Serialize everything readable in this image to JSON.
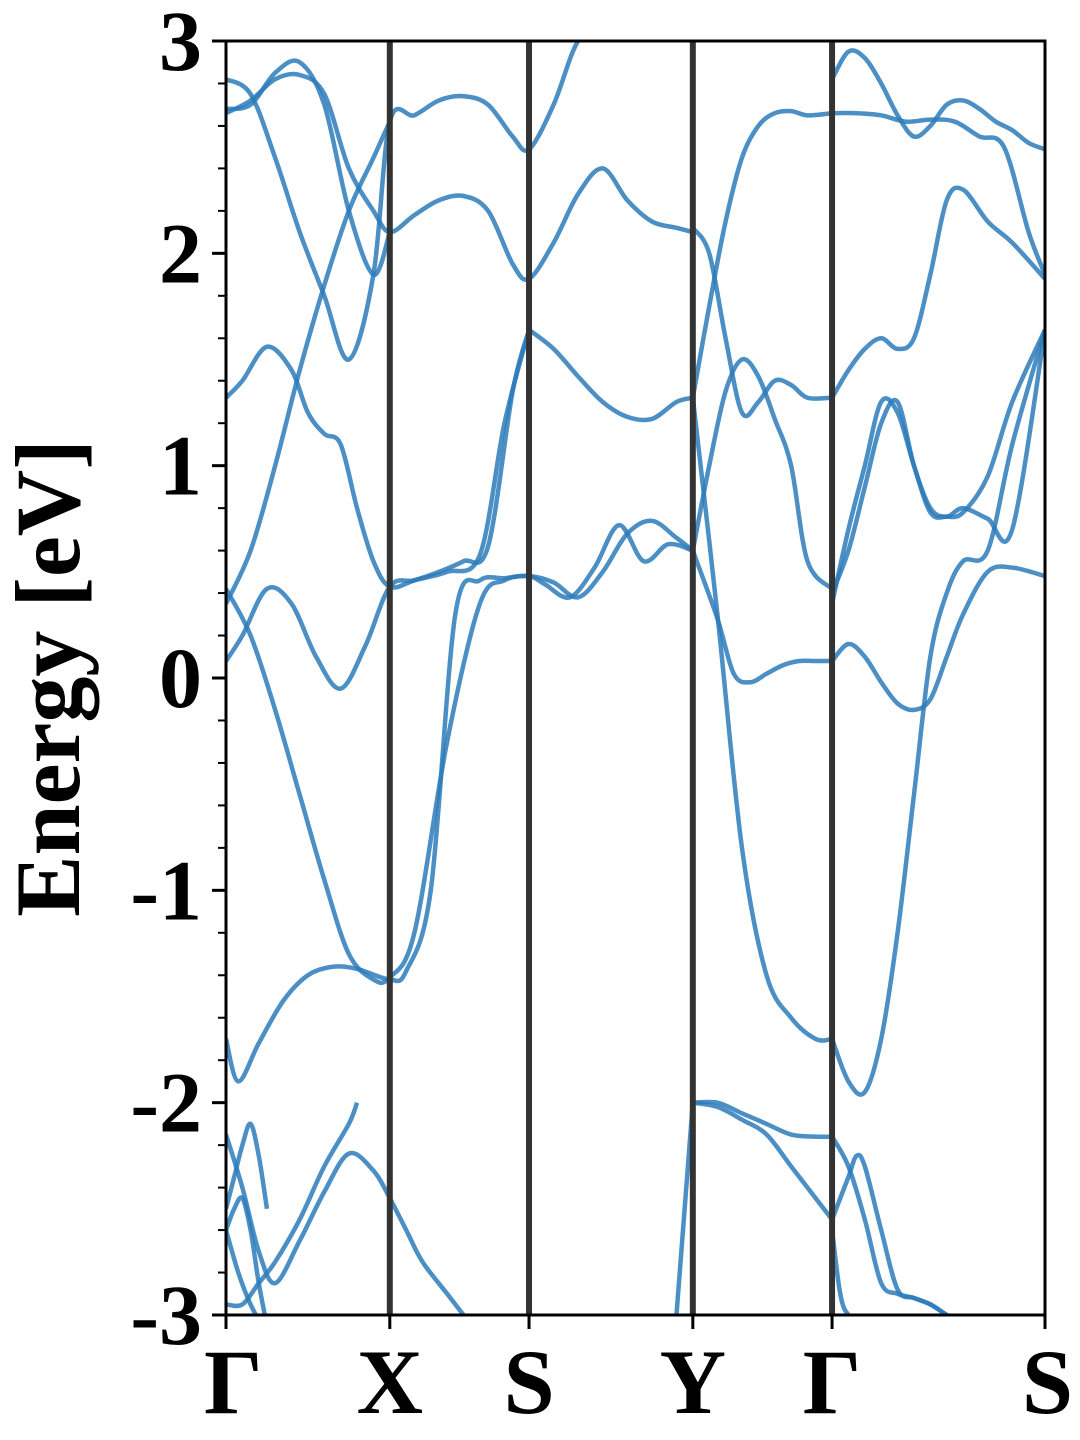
{
  "chart_data": {
    "type": "line",
    "title": "",
    "xlabel": "",
    "ylabel": "Energy [eV]",
    "ylim": [
      -3,
      3
    ],
    "y_major_ticks": [
      -3,
      -2,
      -1,
      0,
      1,
      2,
      3
    ],
    "y_tick_labels": [
      "-3",
      "-2",
      "-1",
      "0",
      "1",
      "2",
      "3"
    ],
    "y_minor_step": 0.2,
    "grid": false,
    "legend": "none",
    "line_color": "#2b7bba",
    "divider_color": "#333333",
    "k_points": [
      "Γ",
      "X",
      "S",
      "Y",
      "Γ",
      "S"
    ],
    "k_positions": [
      0,
      0.2,
      0.37,
      0.57,
      0.74,
      1.0
    ],
    "x_range": [
      0,
      1.0
    ],
    "bands": [
      {
        "x": [
          0,
          0.015,
          0.04,
          0.07,
          0.1,
          0.13,
          0.16,
          0.2,
          0.22,
          0.25,
          0.28,
          0.31,
          0.34,
          0.37,
          0.39,
          0.42,
          0.45,
          0.48,
          0.51,
          0.54,
          0.57
        ],
        "y": [
          -1.7,
          -1.9,
          -1.72,
          -1.52,
          -1.4,
          -1.36,
          -1.37,
          -1.42,
          -1.38,
          -1.0,
          0.3,
          0.46,
          0.47,
          0.48,
          0.44,
          0.38,
          0.52,
          0.72,
          0.55,
          0.63,
          0.6
        ]
      },
      {
        "x": [
          0,
          0.03,
          0.06,
          0.09,
          0.12,
          0.15,
          0.18,
          0.2,
          0.23,
          0.27,
          0.31,
          0.34,
          0.37,
          0.4,
          0.43,
          0.46,
          0.49,
          0.52,
          0.55,
          0.57
        ],
        "y": [
          0.42,
          0.2,
          -0.15,
          -0.55,
          -0.95,
          -1.3,
          -1.42,
          -1.41,
          -1.2,
          -0.3,
          0.35,
          0.46,
          0.48,
          0.45,
          0.38,
          0.5,
          0.68,
          0.74,
          0.66,
          0.6
        ]
      },
      {
        "x": [
          0,
          0.02,
          0.05,
          0.08,
          0.11,
          0.14,
          0.17,
          0.2,
          0.23,
          0.27,
          0.31,
          0.34,
          0.37
        ],
        "y": [
          0.08,
          0.2,
          0.42,
          0.35,
          0.1,
          -0.05,
          0.15,
          0.43,
          0.46,
          0.5,
          0.58,
          1.2,
          1.64
        ]
      },
      {
        "x": [
          0,
          0.03,
          0.06,
          0.09,
          0.12,
          0.15,
          0.18,
          0.2
        ],
        "y": [
          0.35,
          0.6,
          1.0,
          1.45,
          1.85,
          2.2,
          2.45,
          2.62
        ]
      },
      {
        "x": [
          0,
          0.02,
          0.05,
          0.08,
          0.1,
          0.12,
          0.14,
          0.16,
          0.18,
          0.2,
          0.23,
          0.26,
          0.29,
          0.32,
          0.35,
          0.37
        ],
        "y": [
          1.32,
          1.4,
          1.56,
          1.45,
          1.25,
          1.15,
          1.1,
          0.8,
          0.55,
          0.43,
          0.46,
          0.5,
          0.55,
          0.62,
          1.35,
          1.64
        ]
      },
      {
        "x": [
          0,
          0.03,
          0.06,
          0.09,
          0.12,
          0.15,
          0.18,
          0.2,
          0.23,
          0.26,
          0.29,
          0.32,
          0.35,
          0.37,
          0.4,
          0.43,
          0.46,
          0.49,
          0.52,
          0.55,
          0.57
        ],
        "y": [
          2.66,
          2.72,
          2.82,
          2.84,
          2.75,
          2.4,
          2.2,
          2.1,
          2.18,
          2.25,
          2.27,
          2.2,
          1.95,
          1.88,
          2.05,
          2.28,
          2.4,
          2.25,
          2.15,
          2.12,
          2.1
        ]
      },
      {
        "x": [
          0,
          0.03,
          0.06,
          0.09,
          0.12,
          0.15,
          0.18,
          0.2,
          0.23,
          0.26,
          0.29,
          0.32,
          0.35,
          0.37,
          0.4,
          0.43,
          0.46,
          0.49,
          0.52,
          0.55,
          0.57
        ],
        "y": [
          2.82,
          2.75,
          2.45,
          2.1,
          1.8,
          1.5,
          1.9,
          2.62,
          2.65,
          2.72,
          2.74,
          2.7,
          2.55,
          2.49,
          2.7,
          3.0,
          3.05,
          3.1,
          3.1,
          3.1,
          3.1
        ]
      },
      {
        "x": [
          0,
          0.03,
          0.06,
          0.09,
          0.12,
          0.15,
          0.18,
          0.2
        ],
        "y": [
          2.68,
          2.7,
          2.85,
          2.9,
          2.7,
          2.2,
          1.9,
          2.1
        ]
      },
      {
        "x": [
          0.37,
          0.4,
          0.43,
          0.46,
          0.49,
          0.52,
          0.55,
          0.57
        ],
        "y": [
          1.64,
          1.55,
          1.42,
          1.3,
          1.23,
          1.22,
          1.3,
          1.32
        ]
      },
      {
        "x": [
          0.57,
          0.59,
          0.61,
          0.63,
          0.65,
          0.67,
          0.69,
          0.71,
          0.74
        ],
        "y": [
          0.6,
          1.0,
          1.35,
          1.5,
          1.42,
          1.22,
          1.0,
          0.55,
          0.42
        ]
      },
      {
        "x": [
          0.57,
          0.59,
          0.61,
          0.63,
          0.65,
          0.67,
          0.69,
          0.71,
          0.74
        ],
        "y": [
          1.32,
          1.75,
          2.15,
          2.45,
          2.6,
          2.66,
          2.67,
          2.65,
          2.66
        ]
      },
      {
        "x": [
          0.57,
          0.59,
          0.61,
          0.63,
          0.65,
          0.67,
          0.69,
          0.71,
          0.74
        ],
        "y": [
          2.12,
          2.0,
          1.6,
          1.25,
          1.3,
          1.4,
          1.38,
          1.32,
          1.32
        ]
      },
      {
        "x": [
          0.57,
          0.6,
          0.62,
          0.64,
          0.66,
          0.68,
          0.7,
          0.72,
          0.74
        ],
        "y": [
          0.6,
          0.28,
          0.02,
          -0.02,
          0.02,
          0.06,
          0.08,
          0.08,
          0.08
        ]
      },
      {
        "x": [
          0.57,
          0.6,
          0.63,
          0.66,
          0.69,
          0.72,
          0.74
        ],
        "y": [
          1.32,
          0.3,
          -0.8,
          -1.4,
          -1.6,
          -1.7,
          -1.7
        ]
      },
      {
        "x": [
          0.74,
          0.76,
          0.78,
          0.8,
          0.82,
          0.84,
          0.86,
          0.88,
          0.9,
          0.93,
          0.96,
          1.0
        ],
        "y": [
          0.08,
          0.16,
          0.1,
          -0.02,
          -0.12,
          -0.15,
          -0.1,
          0.1,
          0.3,
          0.5,
          0.52,
          0.48
        ]
      },
      {
        "x": [
          0.74,
          0.76,
          0.78,
          0.8,
          0.82,
          0.84,
          0.86,
          0.88,
          0.9,
          0.93,
          0.96,
          1.0
        ],
        "y": [
          -1.7,
          -1.9,
          -1.95,
          -1.7,
          -1.2,
          -0.55,
          0.1,
          0.4,
          0.55,
          0.6,
          1.1,
          1.64
        ]
      },
      {
        "x": [
          0.74,
          0.76,
          0.78,
          0.8,
          0.82,
          0.84,
          0.86,
          0.88,
          0.9,
          0.93,
          0.96,
          1.0
        ],
        "y": [
          0.4,
          0.6,
          0.9,
          1.2,
          1.3,
          1.0,
          0.8,
          0.76,
          0.8,
          0.75,
          0.7,
          1.64
        ]
      },
      {
        "x": [
          0.74,
          0.76,
          0.78,
          0.8,
          0.82,
          0.84,
          0.86,
          0.88,
          0.9,
          0.93,
          0.96,
          1.0
        ],
        "y": [
          0.35,
          0.7,
          1.0,
          1.3,
          1.25,
          1.0,
          0.78,
          0.76,
          0.78,
          0.95,
          1.3,
          1.64
        ]
      },
      {
        "x": [
          0.74,
          0.76,
          0.78,
          0.8,
          0.82,
          0.84,
          0.86,
          0.88,
          0.9,
          0.93,
          0.96,
          1.0
        ],
        "y": [
          1.32,
          1.45,
          1.55,
          1.6,
          1.55,
          1.6,
          1.9,
          2.25,
          2.3,
          2.15,
          2.05,
          1.88
        ]
      },
      {
        "x": [
          0.74,
          0.77,
          0.8,
          0.83,
          0.86,
          0.89,
          0.92,
          0.95,
          0.98,
          1.0
        ],
        "y": [
          2.66,
          2.66,
          2.65,
          2.62,
          2.63,
          2.62,
          2.55,
          2.5,
          2.1,
          1.9
        ]
      },
      {
        "x": [
          0.74,
          0.76,
          0.78,
          0.8,
          0.82,
          0.84,
          0.86,
          0.88,
          0.9,
          0.92,
          0.94,
          0.96,
          0.98,
          1.0
        ],
        "y": [
          2.82,
          2.95,
          2.92,
          2.8,
          2.65,
          2.55,
          2.6,
          2.7,
          2.72,
          2.68,
          2.62,
          2.58,
          2.52,
          2.49
        ]
      },
      {
        "x": [
          0.57,
          0.6,
          0.63,
          0.66,
          0.69,
          0.72,
          0.74
        ],
        "y": [
          -2.0,
          -2.0,
          -2.05,
          -2.1,
          -2.15,
          -2.16,
          -2.16
        ]
      },
      {
        "x": [
          0.57,
          0.6,
          0.63,
          0.66,
          0.69,
          0.72,
          0.74
        ],
        "y": [
          -2.0,
          -2.02,
          -2.08,
          -2.15,
          -2.3,
          -2.45,
          -2.55
        ]
      },
      {
        "x": [
          0.55,
          0.56,
          0.57
        ],
        "y": [
          -3.0,
          -2.5,
          -2.0
        ]
      },
      {
        "x": [
          0.74,
          0.76,
          0.78,
          0.8,
          0.82,
          0.84,
          0.86,
          0.88,
          0.9,
          0.93,
          0.96,
          1.0
        ],
        "y": [
          -2.16,
          -2.3,
          -2.55,
          -2.85,
          -2.9,
          -2.92,
          -2.95,
          -3.0,
          -3.05,
          -3.1,
          -3.1,
          -3.1
        ]
      },
      {
        "x": [
          0.74,
          0.75,
          0.76,
          0.77,
          0.78,
          0.8,
          0.82,
          0.84,
          0.86,
          0.88,
          0.9
        ],
        "y": [
          -2.55,
          -2.45,
          -2.35,
          -2.25,
          -2.3,
          -2.6,
          -2.88,
          -2.92,
          -2.95,
          -3.0,
          -3.05
        ]
      },
      {
        "x": [
          0.74,
          0.75,
          0.76,
          0.78,
          0.8,
          0.82,
          0.84,
          0.86,
          0.88,
          0.9
        ],
        "y": [
          -2.6,
          -2.9,
          -3.0,
          -3.05,
          -3.05,
          -3.05,
          -3.05,
          -3.05,
          -3.05,
          -3.05
        ]
      },
      {
        "x": [
          0.0,
          0.02,
          0.04,
          0.06,
          0.09,
          0.12,
          0.15,
          0.18,
          0.2,
          0.22,
          0.24,
          0.27,
          0.3
        ],
        "y": [
          -2.15,
          -2.4,
          -2.7,
          -2.85,
          -2.65,
          -2.42,
          -2.24,
          -2.32,
          -2.45,
          -2.6,
          -2.75,
          -2.9,
          -3.05
        ]
      },
      {
        "x": [
          0.0,
          0.015,
          0.03,
          0.045,
          0.06
        ],
        "y": [
          -2.6,
          -2.8,
          -2.95,
          -3.05,
          -3.1
        ]
      },
      {
        "x": [
          0.0,
          0.02,
          0.04,
          0.06,
          0.09,
          0.12,
          0.15,
          0.16
        ],
        "y": [
          -2.95,
          -2.95,
          -2.85,
          -2.75,
          -2.55,
          -2.3,
          -2.1,
          -2.0
        ]
      },
      {
        "x": [
          0.0,
          0.01,
          0.02,
          0.03,
          0.04,
          0.05
        ],
        "y": [
          -2.5,
          -2.35,
          -2.2,
          -2.1,
          -2.25,
          -2.5
        ]
      },
      {
        "x": [
          0.0,
          0.01,
          0.02,
          0.03,
          0.04,
          0.05
        ],
        "y": [
          -2.6,
          -2.5,
          -2.45,
          -2.6,
          -2.85,
          -3.05
        ]
      }
    ]
  }
}
